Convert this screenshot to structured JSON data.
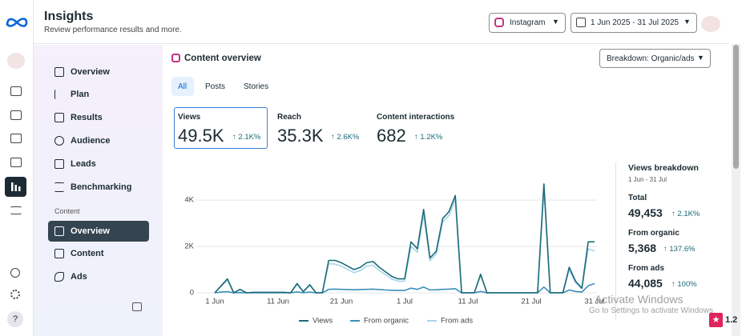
{
  "header": {
    "title": "Insights",
    "subtitle": "Review performance results and more.",
    "platform": "Instagram",
    "date_range": "1 Jun 2025 - 31 Jul 2025"
  },
  "nav": {
    "items": [
      "Overview",
      "Plan",
      "Results",
      "Audience",
      "Leads",
      "Benchmarking"
    ],
    "section": "Content",
    "content_items": [
      "Overview",
      "Content",
      "Ads"
    ]
  },
  "panel": {
    "title": "Content overview",
    "breakdown": "Breakdown: Organic/ads",
    "tabs": [
      "All",
      "Posts",
      "Stories"
    ]
  },
  "metrics": [
    {
      "label": "Views",
      "value": "49.5K",
      "change": "2.1K%"
    },
    {
      "label": "Reach",
      "value": "35.3K",
      "change": "2.6K%"
    },
    {
      "label": "Content interactions",
      "value": "682",
      "change": "1.2K%"
    }
  ],
  "breakdown": {
    "title": "Views breakdown",
    "period": "1 Jun - 31 Jul",
    "rows": [
      {
        "label": "Total",
        "value": "49,453",
        "change": "2.1K%"
      },
      {
        "label": "From organic",
        "value": "5,368",
        "change": "137.6%"
      },
      {
        "label": "From ads",
        "value": "44,085",
        "change": "100%"
      }
    ]
  },
  "watermark": {
    "title": "Activate Windows",
    "text": "Go to Settings to activate Windows"
  },
  "badge": "1.2",
  "chart_data": {
    "type": "line",
    "categories": [
      "1 Jun",
      null,
      null,
      null,
      null,
      null,
      null,
      null,
      null,
      null,
      "11 Jun",
      null,
      null,
      null,
      null,
      null,
      null,
      null,
      null,
      null,
      "21 Jun",
      null,
      null,
      null,
      null,
      null,
      null,
      null,
      null,
      null,
      "1 Jul",
      null,
      null,
      null,
      null,
      null,
      null,
      null,
      null,
      null,
      "11 Jul",
      null,
      null,
      null,
      null,
      null,
      null,
      null,
      null,
      null,
      "21 Jul",
      null,
      null,
      null,
      null,
      null,
      null,
      null,
      null,
      null,
      "31 Jul"
    ],
    "series": [
      {
        "name": "Views",
        "color": "#1b6b78",
        "values": [
          0,
          300,
          600,
          0,
          150,
          0,
          20,
          20,
          20,
          20,
          20,
          20,
          0,
          400,
          50,
          350,
          0,
          0,
          1400,
          1400,
          1300,
          1150,
          1000,
          1100,
          1300,
          1350,
          1100,
          900,
          700,
          600,
          600,
          2200,
          1900,
          3600,
          1500,
          1800,
          3200,
          3500,
          4200,
          0,
          0,
          0,
          800,
          0,
          0,
          0,
          0,
          0,
          0,
          0,
          0,
          0,
          4700,
          0,
          0,
          0,
          1100,
          500,
          200,
          2200,
          2200
        ]
      },
      {
        "name": "From organic",
        "color": "#3b8fba",
        "values": [
          0,
          30,
          50,
          0,
          10,
          0,
          5,
          5,
          5,
          5,
          5,
          5,
          0,
          40,
          5,
          30,
          0,
          0,
          150,
          160,
          150,
          140,
          130,
          140,
          150,
          160,
          140,
          120,
          110,
          100,
          100,
          200,
          150,
          250,
          120,
          130,
          150,
          160,
          180,
          0,
          0,
          0,
          60,
          0,
          0,
          0,
          0,
          0,
          0,
          0,
          0,
          0,
          250,
          0,
          0,
          0,
          120,
          60,
          30,
          300,
          400
        ]
      },
      {
        "name": "From ads",
        "color": "#a9d5ea",
        "values": [
          0,
          270,
          550,
          0,
          140,
          0,
          15,
          15,
          15,
          15,
          15,
          15,
          0,
          360,
          45,
          320,
          0,
          0,
          1250,
          1240,
          1150,
          1010,
          870,
          960,
          1150,
          1190,
          960,
          780,
          590,
          500,
          500,
          2000,
          1750,
          3350,
          1380,
          1670,
          3050,
          3340,
          4020,
          0,
          0,
          0,
          740,
          0,
          0,
          0,
          0,
          0,
          0,
          0,
          0,
          0,
          4450,
          0,
          0,
          0,
          980,
          440,
          170,
          1900,
          1800
        ]
      }
    ],
    "ylim": [
      0,
      4800
    ],
    "yticks": [
      0,
      {
        "value": 2000,
        "label": "2K"
      },
      {
        "value": 4000,
        "label": "4K"
      }
    ],
    "grid": true
  }
}
